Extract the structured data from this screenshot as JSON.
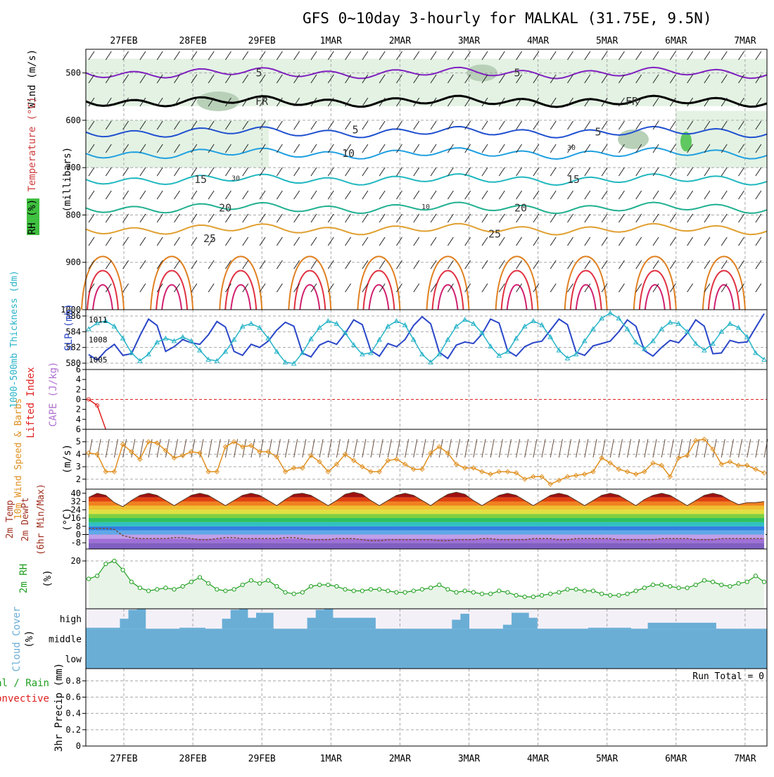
{
  "title": "GFS 0~10day 3-hourly for MALKAL (31.75E, 9.5N)",
  "dates": [
    "27FEB",
    "28FEB",
    "29FEB",
    "1MAR",
    "2MAR",
    "3MAR",
    "4MAR",
    "5MAR",
    "6MAR",
    "7MAR"
  ],
  "colors": {
    "grid": "#a8a8a8",
    "rh_fill": "#dcefdc",
    "wind_blue": "#2a46c8",
    "slp_cyan": "#28b4c8",
    "lifted_red": "#e02020",
    "cape_purple": "#b070d0",
    "wind_orange": "#e09020",
    "rh_green": "#20a020",
    "cloud_blue": "#6aaed6",
    "cloud_bg": "#f4f0f8"
  },
  "chart_data": [
    {
      "type": "contour",
      "name": "upper-air",
      "ylabel_wind": "Wind (m/s)",
      "ylabel_temp": "Temperature (°C)",
      "ylabel_rh": "RH (%)",
      "ylabel_p": "(millibars)",
      "yticks": [
        "500",
        "600",
        "700",
        "800",
        "900",
        "1000"
      ],
      "ylim": [
        450,
        1000
      ],
      "contour_labels": [
        "5",
        "FR",
        "5",
        "10",
        "15",
        "20",
        "25",
        "5",
        "FR",
        "5",
        "15",
        "20",
        "25",
        "30",
        "10",
        "30"
      ],
      "isotherms": [
        {
          "label": "5",
          "level": 500,
          "color": "#8020c0"
        },
        {
          "label": "FR",
          "level": 560,
          "color": "#000000"
        },
        {
          "label": "5",
          "level": 625,
          "color": "#2050d0"
        },
        {
          "label": "10",
          "level": 670,
          "color": "#20a0e0"
        },
        {
          "label": "15",
          "level": 725,
          "color": "#20b8c0"
        },
        {
          "label": "20",
          "level": 785,
          "color": "#20b090"
        },
        {
          "label": "25",
          "level": 830,
          "color": "#e0a030"
        }
      ]
    },
    {
      "type": "line",
      "name": "thickness-slp",
      "ylabel_thk": "1000-500mb Thickness (dm)",
      "ylabel_slp": "SLP (mb)",
      "yticks_left": [
        "580",
        "582",
        "584",
        "586"
      ],
      "yticks_right": [
        "1005",
        "1008",
        "1011"
      ],
      "ylim_left": [
        579.2,
        586.8
      ],
      "ylim_right": [
        1003.5,
        1012.5
      ],
      "thickness": [
        581.1,
        580.4,
        581.6,
        582.4,
        581.0,
        581.2,
        583.5,
        585.6,
        584.8,
        581.5,
        582.1,
        583.0,
        582.6,
        582.4,
        583.6,
        585.3,
        584.6,
        581.5,
        581.0,
        582.4,
        582.0,
        582.8,
        584.2,
        585.2,
        584.7,
        581.3,
        580.8,
        582.3,
        582.8,
        582.4,
        583.8,
        585.5,
        584.9,
        581.6,
        580.9,
        582.5,
        582.1,
        583.0,
        584.8,
        585.9,
        585.0,
        581.4,
        580.6,
        582.3,
        582.7,
        582.5,
        583.7,
        585.6,
        585.1,
        581.6,
        580.9,
        582.1,
        582.6,
        582.8,
        584.2,
        585.6,
        584.9,
        581.4,
        581.0,
        582.2,
        582.5,
        582.8,
        584.0,
        585.5,
        584.7,
        581.6,
        580.9,
        582.0,
        582.9,
        582.6,
        583.8,
        585.5,
        584.7,
        581.2,
        581.3,
        582.9,
        582.6,
        582.7,
        584.5,
        586.3
      ],
      "slp": [
        1009.6,
        1010.5,
        1010.8,
        1010.0,
        1008.2,
        1006.0,
        1004.8,
        1005.8,
        1007.6,
        1008.2,
        1007.8,
        1008.4,
        1007.8,
        1006.4,
        1005.0,
        1004.8,
        1006.2,
        1008.0,
        1010.0,
        1010.4,
        1009.8,
        1008.2,
        1006.2,
        1004.6,
        1004.4,
        1006.0,
        1008.1,
        1009.8,
        1010.8,
        1010.4,
        1009.0,
        1007.2,
        1005.8,
        1006.0,
        1008.0,
        1010.0,
        1010.8,
        1010.2,
        1008.0,
        1005.8,
        1004.6,
        1005.8,
        1008.0,
        1010.0,
        1011.0,
        1010.4,
        1009.0,
        1007.0,
        1005.6,
        1006.2,
        1008.2,
        1010.0,
        1010.8,
        1010.2,
        1008.4,
        1006.4,
        1005.2,
        1005.8,
        1007.8,
        1009.6,
        1011.2,
        1012.0,
        1011.2,
        1009.6,
        1007.6,
        1006.6,
        1007.8,
        1009.6,
        1010.6,
        1010.4,
        1009.2,
        1007.4,
        1006.4,
        1007.4,
        1009.2,
        1010.4,
        1009.8,
        1008.4,
        1006.0,
        1005.0
      ]
    },
    {
      "type": "line",
      "name": "lifted-cape",
      "ylabel_li": "Lifted Index",
      "ylabel_cape": "CAPE (J/kg)",
      "yticks": [
        "-6",
        "-4",
        "-2",
        "0",
        "2",
        "4",
        "6"
      ],
      "ylim": [
        -6,
        6
      ],
      "lifted_index": [
        0.0,
        1.2,
        6.0
      ]
    },
    {
      "type": "line",
      "name": "wind10m",
      "ylabel": "10m Wind Speed & Barbs",
      "yunit": "(m/s)",
      "yticks": [
        "2",
        "3",
        "4",
        "5"
      ],
      "ylim": [
        1.2,
        6.0
      ],
      "speed": [
        4.1,
        4.0,
        2.6,
        2.6,
        4.8,
        4.2,
        3.6,
        5.0,
        4.9,
        4.3,
        3.7,
        3.9,
        4.2,
        4.1,
        2.6,
        2.6,
        4.6,
        5.0,
        4.6,
        4.7,
        4.2,
        4.2,
        3.8,
        2.6,
        2.9,
        2.9,
        3.9,
        3.4,
        2.6,
        3.2,
        4.0,
        3.5,
        3.0,
        2.6,
        2.6,
        3.5,
        3.6,
        3.2,
        2.8,
        2.8,
        4.1,
        4.6,
        4.1,
        3.2,
        2.9,
        2.9,
        2.6,
        2.4,
        2.6,
        2.6,
        2.5,
        2.0,
        2.2,
        2.2,
        1.6,
        1.9,
        2.2,
        2.3,
        2.4,
        2.6,
        3.7,
        3.3,
        2.8,
        2.6,
        2.4,
        2.6,
        3.3,
        3.1,
        2.2,
        3.7,
        3.9,
        5.1,
        5.2,
        4.4,
        3.2,
        3.4,
        3.1,
        3.1,
        2.8,
        2.5
      ]
    },
    {
      "type": "area",
      "name": "temp2m",
      "ylabel": "2m Temp 2m DewPt (6hr Min/Max)",
      "yunit": "(°C)",
      "yticks": [
        "-8",
        "0",
        "8",
        "16",
        "24",
        "32",
        "40"
      ],
      "ylim": [
        -14,
        44
      ],
      "temp_max": [
        36,
        40,
        38,
        31,
        27,
        33,
        38,
        40,
        38,
        33,
        28,
        33,
        38,
        40,
        38,
        33,
        28,
        33,
        38,
        40,
        38,
        33,
        28,
        34,
        39,
        40,
        38,
        33,
        28,
        33,
        39,
        41,
        39,
        33,
        28,
        33,
        38,
        40,
        38,
        33,
        28,
        34,
        39,
        41,
        39,
        33,
        28,
        33,
        38,
        40,
        38,
        33,
        28,
        33,
        38,
        40,
        38,
        33,
        28,
        33,
        38,
        40,
        38,
        33,
        28,
        34,
        38,
        40,
        38,
        33,
        28,
        33,
        38,
        40,
        38,
        33,
        29,
        31,
        31,
        32
      ],
      "dewpoint": [
        6,
        6,
        6,
        5,
        -1,
        -3,
        -4,
        -4,
        -4,
        -4,
        -3,
        -3,
        -4,
        -5,
        -5,
        -4,
        -3,
        -3,
        -4,
        -4,
        -4,
        -4,
        -4,
        -3,
        -3,
        -4,
        -5,
        -5,
        -5,
        -4,
        -4,
        -4,
        -5,
        -6,
        -6,
        -5,
        -5,
        -5,
        -5,
        -5,
        -5,
        -6,
        -6,
        -5,
        -5,
        -5,
        -4,
        -4,
        -5,
        -5,
        -5,
        -5,
        -4,
        -4,
        -4,
        -5,
        -5,
        -4,
        -4,
        -4,
        -4,
        -4,
        -5,
        -5,
        -5,
        -5,
        -5,
        -4,
        -4,
        -4,
        -4,
        -5,
        -5,
        -5,
        -4,
        -4,
        -4,
        -4,
        -4,
        -4
      ]
    },
    {
      "type": "area",
      "name": "rh2m",
      "ylabel": "2m RH",
      "yunit": "(%)",
      "yticks": [
        "20"
      ],
      "ylim": [
        4,
        24
      ],
      "values": [
        14.0,
        15.0,
        19.0,
        20.0,
        17.0,
        13.0,
        11.0,
        10.0,
        10.5,
        11.0,
        10.5,
        11.5,
        13.0,
        14.5,
        12.5,
        10.5,
        10.0,
        10.5,
        12.0,
        13.5,
        12.5,
        13.5,
        11.5,
        9.5,
        9.0,
        9.5,
        11.5,
        12.0,
        12.0,
        11.5,
        10.5,
        10.0,
        10.0,
        10.5,
        10.5,
        10.0,
        9.5,
        9.5,
        10.0,
        10.5,
        11.0,
        12.0,
        10.5,
        9.5,
        10.0,
        9.5,
        9.0,
        9.0,
        10.0,
        9.5,
        8.5,
        8.0,
        8.0,
        8.5,
        9.0,
        9.5,
        10.5,
        10.5,
        10.0,
        10.0,
        9.0,
        8.5,
        8.5,
        9.0,
        10.0,
        11.0,
        12.0,
        12.0,
        11.5,
        11.0,
        11.0,
        12.0,
        13.5,
        13.0,
        12.0,
        11.5,
        12.5,
        13.0,
        15.0,
        13.0
      ]
    },
    {
      "type": "bar",
      "name": "cloud-cover",
      "ylabel": "Cloud Cover",
      "yunit": "(%)",
      "levels": [
        "high",
        "middle",
        "low"
      ],
      "high_top": [
        0.05,
        0.05,
        0.05,
        0.05,
        0.5,
        0.95,
        1.0,
        0.0,
        0.0,
        0.0,
        0.0,
        0.05,
        0.05,
        0.05,
        0.0,
        0.0,
        0.5,
        0.95,
        1.0,
        0.55,
        0.8,
        0.8,
        0.0,
        0.0,
        0.0,
        0.0,
        0.55,
        0.95,
        1.0,
        0.55,
        0.55,
        0.55,
        0.55,
        0.55,
        0.0,
        0.0,
        0.0,
        0.0,
        0.0,
        0.0,
        0.0,
        0.0,
        0.0,
        0.45,
        0.75,
        0.0,
        0.0,
        0.0,
        0.0,
        0.2,
        0.8,
        0.8,
        0.55,
        0.0,
        0.0,
        0.0,
        0.0,
        0.0,
        0.0,
        0.05,
        0.05,
        0.05,
        0.05,
        0.05,
        0.0,
        0.0,
        0.3,
        0.3,
        0.3,
        0.3,
        0.3,
        0.3,
        0.3,
        0.3,
        0.0,
        0.0,
        0.0,
        0.0,
        0.0,
        0.0
      ],
      "middle_top": [
        0.6,
        0.6,
        0.6,
        0.6,
        0.6,
        0.6,
        0.6,
        0.6,
        0.6,
        0.6,
        0.6,
        0.6,
        0.6,
        0.6,
        0.6,
        0.6,
        0.6,
        0.6,
        0.6,
        0.6,
        0.6,
        0.6,
        0.6,
        0.6,
        0.6,
        0.6,
        0.6,
        0.6,
        0.6,
        0.6,
        0.6,
        0.6,
        0.6,
        0.6,
        0.6,
        0.6,
        0.6,
        0.6,
        0.6,
        0.6,
        0.6,
        0.6,
        0.6,
        0.6,
        0.6,
        0.6,
        0.6,
        0.6,
        0.6,
        0.6,
        0.6,
        0.6,
        0.6,
        0.6,
        0.6,
        0.6,
        0.6,
        0.6,
        0.6,
        0.6,
        0.6,
        0.6,
        0.6,
        0.6,
        0.6,
        0.6,
        0.6,
        0.6,
        0.6,
        0.6,
        0.6,
        0.6,
        0.6,
        0.6,
        0.6,
        0.6,
        0.6,
        0.6,
        0.6,
        0.6
      ]
    },
    {
      "type": "bar",
      "name": "precip",
      "ylabel": "3hr Precip (mm)",
      "legend_total": "Total / Rain",
      "legend_conv": "Convective",
      "run_total": "Run Total = 0",
      "yticks": [
        "0",
        "0.2",
        "0.4",
        "0.6",
        "0.8"
      ],
      "ylim": [
        0,
        0.95
      ],
      "values": []
    }
  ]
}
